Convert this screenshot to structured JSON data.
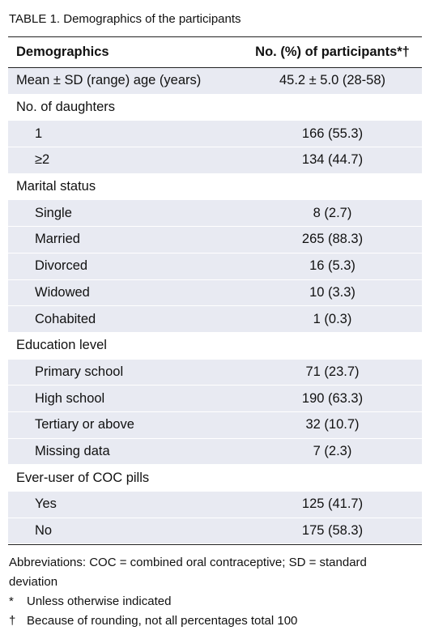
{
  "title": "TABLE 1. Demographics of the participants",
  "table": {
    "header": [
      "Demographics",
      "No. (%) of participants*†"
    ],
    "summary": [
      "Mean ± SD (range) age (years)",
      "45.2 ± 5.0 (28-58)"
    ],
    "sections": [
      {
        "label": "No. of daughters",
        "rows": [
          [
            "1",
            "166 (55.3)"
          ],
          [
            "≥2",
            "134 (44.7)"
          ]
        ]
      },
      {
        "label": "Marital status",
        "rows": [
          [
            "Single",
            "8 (2.7)"
          ],
          [
            "Married",
            "265 (88.3)"
          ],
          [
            "Divorced",
            "16 (5.3)"
          ],
          [
            "Widowed",
            "10 (3.3)"
          ],
          [
            "Cohabited",
            "1 (0.3)"
          ]
        ]
      },
      {
        "label": "Education level",
        "rows": [
          [
            "Primary school",
            "71 (23.7)"
          ],
          [
            "High school",
            "190 (63.3)"
          ],
          [
            "Tertiary or above",
            "32 (10.7)"
          ],
          [
            "Missing data",
            "7 (2.3)"
          ]
        ]
      },
      {
        "label": "Ever-user of COC pills",
        "rows": [
          [
            "Yes",
            "125 (41.7)"
          ],
          [
            "No",
            "175 (58.3)"
          ]
        ]
      }
    ]
  },
  "abbreviations": "Abbreviations: COC = combined oral contraceptive; SD = standard deviation",
  "footnotes": [
    {
      "mark": "*",
      "text": "Unless otherwise indicated"
    },
    {
      "mark": "†",
      "text": "Because of rounding, not all percentages total 100"
    }
  ]
}
